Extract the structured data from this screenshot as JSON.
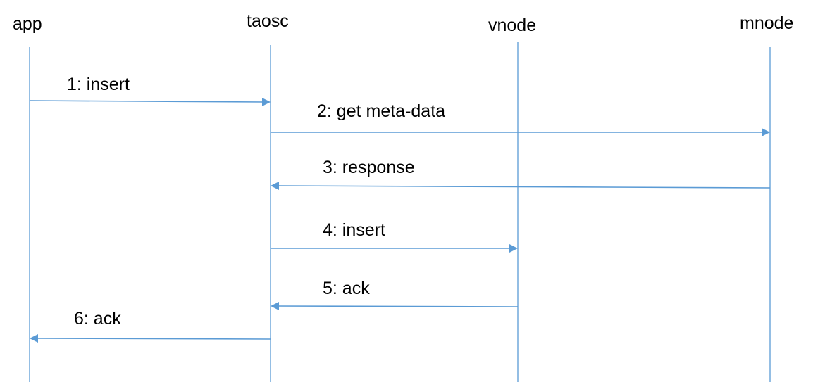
{
  "diagram": {
    "type": "sequence",
    "line_color": "#5b9bd5",
    "participants": [
      {
        "id": "app",
        "label": "app"
      },
      {
        "id": "taosc",
        "label": "taosc"
      },
      {
        "id": "vnode",
        "label": "vnode"
      },
      {
        "id": "mnode",
        "label": "mnode"
      }
    ],
    "messages": [
      {
        "from": "app",
        "to": "taosc",
        "label": "1: insert"
      },
      {
        "from": "taosc",
        "to": "mnode",
        "label": "2: get meta-data"
      },
      {
        "from": "mnode",
        "to": "taosc",
        "label": "3: response"
      },
      {
        "from": "taosc",
        "to": "vnode",
        "label": "4: insert"
      },
      {
        "from": "vnode",
        "to": "taosc",
        "label": "5: ack"
      },
      {
        "from": "taosc",
        "to": "app",
        "label": "6: ack"
      }
    ]
  }
}
